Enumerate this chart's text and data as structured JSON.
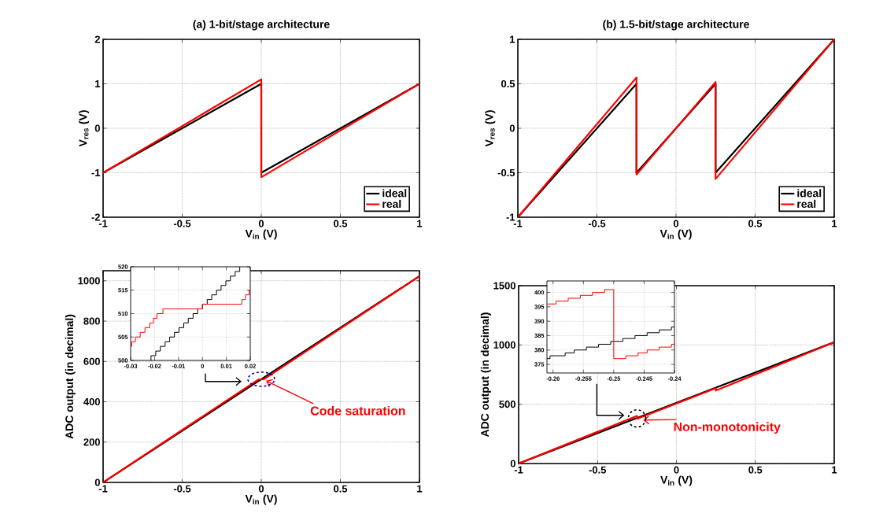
{
  "chart_data": [
    {
      "type": "line",
      "title": "(a) 1-bit/stage architecture",
      "xlabel": "V$_{in}$ (V)",
      "ylabel": "V$_{res}$ (V)",
      "xlim": [
        -1,
        1
      ],
      "ylim": [
        -2,
        2
      ],
      "xticks": [
        -1,
        -0.5,
        0,
        0.5,
        1
      ],
      "yticks": [
        -2,
        -1,
        0,
        1,
        2
      ],
      "grid": true,
      "legend": "bottom right",
      "series": [
        {
          "name": "ideal",
          "color": "#000000",
          "x": [
            -1,
            0,
            0,
            1
          ],
          "values": [
            -1,
            1,
            -1,
            1
          ]
        },
        {
          "name": "real",
          "color": "#ff0000",
          "x": [
            -1,
            0,
            0,
            1
          ],
          "values": [
            -1,
            1.1,
            -1.1,
            1
          ]
        }
      ]
    },
    {
      "type": "line",
      "title": "(b) 1.5-bit/stage architecture",
      "xlabel": "V$_{in}$ (V)",
      "ylabel": "V$_{res}$ (V)",
      "xlim": [
        -1,
        1
      ],
      "ylim": [
        -1,
        1
      ],
      "xticks": [
        -1,
        -0.5,
        0,
        0.5,
        1
      ],
      "yticks": [
        -1,
        -0.5,
        0,
        0.5,
        1
      ],
      "grid": true,
      "legend": "bottom right",
      "series": [
        {
          "name": "ideal",
          "color": "#000000",
          "x": [
            -1,
            -0.25,
            -0.25,
            0.25,
            0.25,
            1
          ],
          "values": [
            -1,
            0.5,
            -0.5,
            0.5,
            -0.5,
            1
          ]
        },
        {
          "name": "real",
          "color": "#ff0000",
          "x": [
            -1,
            -0.25,
            -0.25,
            0.25,
            0.25,
            1
          ],
          "values": [
            -1,
            0.57,
            -0.52,
            0.52,
            -0.57,
            1
          ]
        }
      ]
    },
    {
      "type": "line",
      "xlabel": "V$_{in}$ (V)",
      "ylabel": "ADC output (in decimal)",
      "xlim": [
        -1,
        1
      ],
      "ylim": [
        0,
        1050
      ],
      "xticks": [
        -1,
        -0.5,
        0,
        0.5,
        1
      ],
      "yticks": [
        0,
        200,
        400,
        600,
        800,
        1000
      ],
      "grid": true,
      "annotations": [
        {
          "text": "Code saturation",
          "x": 0,
          "y": 512
        }
      ],
      "series": [
        {
          "color": "#000000",
          "x": [
            -1,
            0,
            1
          ],
          "values": [
            0,
            512,
            1023
          ]
        },
        {
          "color": "#ff0000",
          "x": [
            -1,
            -0.017,
            0.017,
            1
          ],
          "values": [
            0,
            511,
            512,
            1023
          ]
        }
      ]
    },
    {
      "type": "step",
      "xlim": [
        -0.03,
        0.02
      ],
      "ylim": [
        500,
        520
      ],
      "xticks": [
        -0.03,
        -0.02,
        -0.01,
        0,
        0.01,
        0.02
      ],
      "yticks": [
        500,
        505,
        510,
        515,
        520
      ],
      "grid": true,
      "series": [
        {
          "color": "#000000",
          "x": [
            -0.022,
            -0.0215,
            -0.0195,
            -0.0176,
            -0.0156,
            -0.0137,
            -0.0117,
            -0.0098,
            -0.0078,
            -0.0059,
            -0.0039,
            -0.002,
            0,
            0.002,
            0.0039,
            0.0059,
            0.0078,
            0.0098,
            0.0117,
            0.0137,
            0.0156
          ],
          "values": [
            500,
            501,
            502,
            503,
            504,
            505,
            506,
            507,
            508,
            509,
            510,
            511,
            512,
            513,
            514,
            515,
            516,
            517,
            518,
            519,
            520
          ]
        },
        {
          "color": "#ff0000",
          "x": [
            -0.03,
            -0.0295,
            -0.028,
            -0.026,
            -0.024,
            -0.022,
            -0.0205,
            -0.019,
            -0.0165,
            0,
            0.0165,
            0.018,
            0.0195,
            0.02
          ],
          "values": [
            503,
            504,
            505,
            506,
            507,
            508,
            509,
            510,
            511,
            512,
            513,
            514,
            515,
            515
          ]
        }
      ]
    },
    {
      "type": "line",
      "xlabel": "V$_{in}$ (V)",
      "ylabel": "ADC output (in decimal)",
      "xlim": [
        -1,
        1
      ],
      "ylim": [
        0,
        1500
      ],
      "xticks": [
        -1,
        -0.5,
        0,
        0.5,
        1
      ],
      "yticks": [
        0,
        500,
        1000,
        1500
      ],
      "grid": true,
      "annotations": [
        {
          "text": "Non-monotonicity",
          "x": -0.25,
          "y": 380
        }
      ],
      "series": [
        {
          "color": "#000000",
          "x": [
            -1,
            0.25,
            1
          ],
          "values": [
            0,
            640,
            1023
          ]
        },
        {
          "color": "#ff0000",
          "x": [
            -1,
            -0.25,
            -0.25,
            0.25,
            0.25,
            1
          ],
          "values": [
            0,
            401,
            377,
            635,
            615,
            1023
          ]
        }
      ]
    },
    {
      "type": "step",
      "xlim": [
        -0.261,
        -0.24
      ],
      "ylim": [
        372,
        404
      ],
      "xticks": [
        -0.26,
        -0.255,
        -0.25,
        -0.245,
        -0.24
      ],
      "yticks": [
        375,
        380,
        385,
        390,
        395,
        400
      ],
      "grid": true,
      "series": [
        {
          "color": "#000000",
          "x": [
            -0.261,
            -0.2605,
            -0.258,
            -0.2565,
            -0.2545,
            -0.2525,
            -0.2505,
            -0.2485,
            -0.2465,
            -0.2445,
            -0.2425,
            -0.2405,
            -0.24
          ],
          "values": [
            377,
            378,
            379,
            380,
            381,
            382,
            383,
            384,
            385,
            386,
            387,
            388,
            388
          ]
        },
        {
          "color": "#ff0000",
          "x": [
            -0.261,
            -0.2595,
            -0.2575,
            -0.2555,
            -0.2535,
            -0.2515,
            -0.25,
            -0.248,
            -0.246,
            -0.2445,
            -0.2425,
            -0.2405,
            -0.24
          ],
          "values": [
            396,
            397,
            398,
            399,
            400,
            401,
            377,
            378,
            379,
            380,
            381,
            382,
            382
          ]
        }
      ]
    }
  ]
}
